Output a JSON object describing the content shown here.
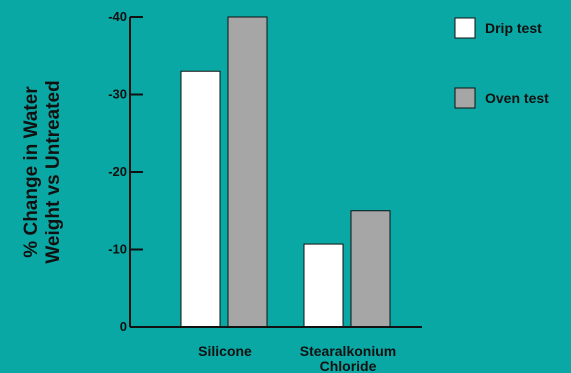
{
  "colors": {
    "background": "#0aa8a4",
    "axis": "#111111"
  },
  "chart_data": {
    "type": "bar",
    "title": "",
    "ylabel_lines": [
      "% Change in Water",
      "Weight vs Untreated"
    ],
    "xlabel": "",
    "categories": [
      {
        "lines": [
          "Silicone"
        ]
      },
      {
        "lines": [
          "Stearalkonium",
          "Chloride"
        ]
      }
    ],
    "series": [
      {
        "name": "Drip test",
        "values": [
          -33,
          -10.7
        ],
        "color": "#ffffff"
      },
      {
        "name": "Oven test",
        "values": [
          -40,
          -15
        ],
        "color": "#a6a6a6"
      }
    ],
    "ylim": [
      0,
      -40
    ],
    "yticks": [
      "0",
      "-10",
      "-20",
      "-30",
      "-40"
    ],
    "ytick_values": [
      0,
      -10,
      -20,
      -30,
      -40
    ],
    "grid": false,
    "legend_position": "right"
  }
}
